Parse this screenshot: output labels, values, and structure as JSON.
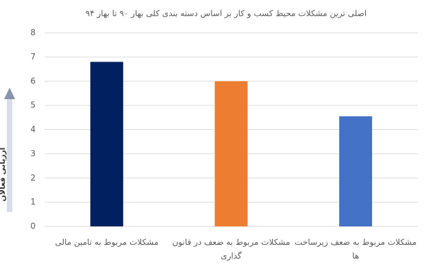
{
  "chart_data": {
    "type": "bar",
    "title": "اصلی ترین مشکلات محیط کسب و کار بر اساس دسته بندی کلی بهار ۹۰ تا بهار ۹۴",
    "y_label": "ارزیابی فعالان",
    "categories": [
      "مشکلات مربوط به تامین مالی",
      "مشکلات مربوط به ضعف در قانون گذاری",
      "مشکلات مربوط به ضعف زیرساخت ها"
    ],
    "values": [
      6.8,
      6.0,
      4.55
    ],
    "colors": [
      "#002060",
      "#ed7d31",
      "#4472c4"
    ],
    "ylim": [
      0,
      8
    ],
    "yticks": [
      0,
      1,
      2,
      3,
      4,
      5,
      6,
      7,
      8
    ],
    "grid": true
  }
}
